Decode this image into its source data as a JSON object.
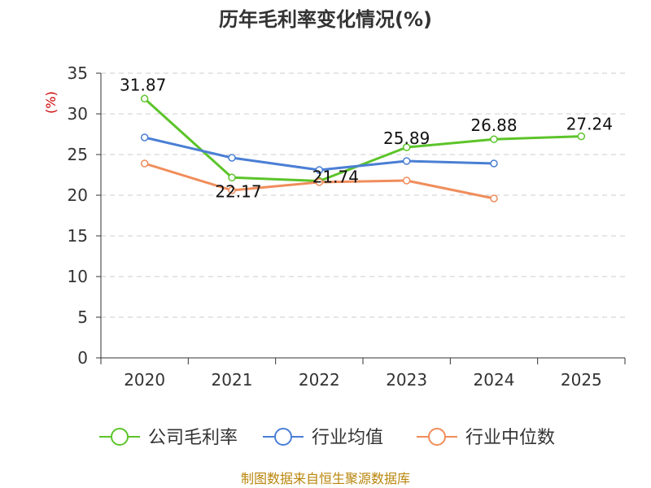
{
  "chart_data": {
    "type": "line",
    "title": "历年毛利率变化情况(%)",
    "ylabel": "(%)",
    "categories": [
      "2020",
      "2021",
      "2022",
      "2023",
      "2024",
      "2025"
    ],
    "ylim": [
      0,
      35
    ],
    "yticks": [
      0,
      5,
      10,
      15,
      20,
      25,
      30,
      35
    ],
    "grid": true,
    "legend_position": "bottom",
    "series": [
      {
        "name": "公司毛利率",
        "color": "#5cc42a",
        "values": [
          31.87,
          22.17,
          21.74,
          25.89,
          26.88,
          27.24
        ],
        "labels": [
          "31.87",
          "22.17",
          "21.74",
          "25.89",
          "26.88",
          "27.24"
        ]
      },
      {
        "name": "行业均值",
        "color": "#4a7fd4",
        "values": [
          27.1,
          24.6,
          23.1,
          24.2,
          23.9,
          null
        ]
      },
      {
        "name": "行业中位数",
        "color": "#f08d5b",
        "values": [
          23.9,
          20.6,
          21.6,
          21.8,
          19.6,
          null
        ]
      }
    ]
  },
  "ylabel_color": "#cc0000",
  "source": {
    "text": "制图数据来自恒生聚源数据库",
    "color": "#b8860b"
  }
}
